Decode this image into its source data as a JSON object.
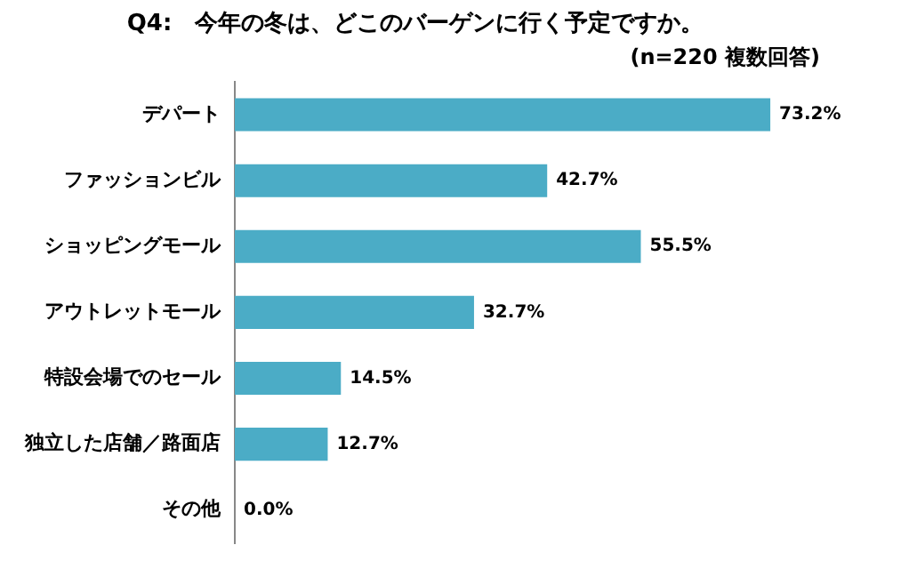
{
  "chart_data": {
    "type": "bar",
    "orientation": "horizontal",
    "title": "Q4:　今年の冬は、どこのバーゲンに行く予定ですか。",
    "subtitle": "(n=220 複数回答)",
    "categories": [
      "デパート",
      "ファッションビル",
      "ショッピングモール",
      "アウトレットモール",
      "特設会場でのセール",
      "独立した店舗／路面店",
      "その他"
    ],
    "values": [
      73.2,
      42.7,
      55.5,
      32.7,
      14.5,
      12.7,
      0.0
    ],
    "value_labels": [
      "73.2%",
      "42.7%",
      "55.5%",
      "32.7%",
      "14.5%",
      "12.7%",
      "0.0%"
    ],
    "color": "#4bacc6",
    "tick_labels": "y"
  }
}
